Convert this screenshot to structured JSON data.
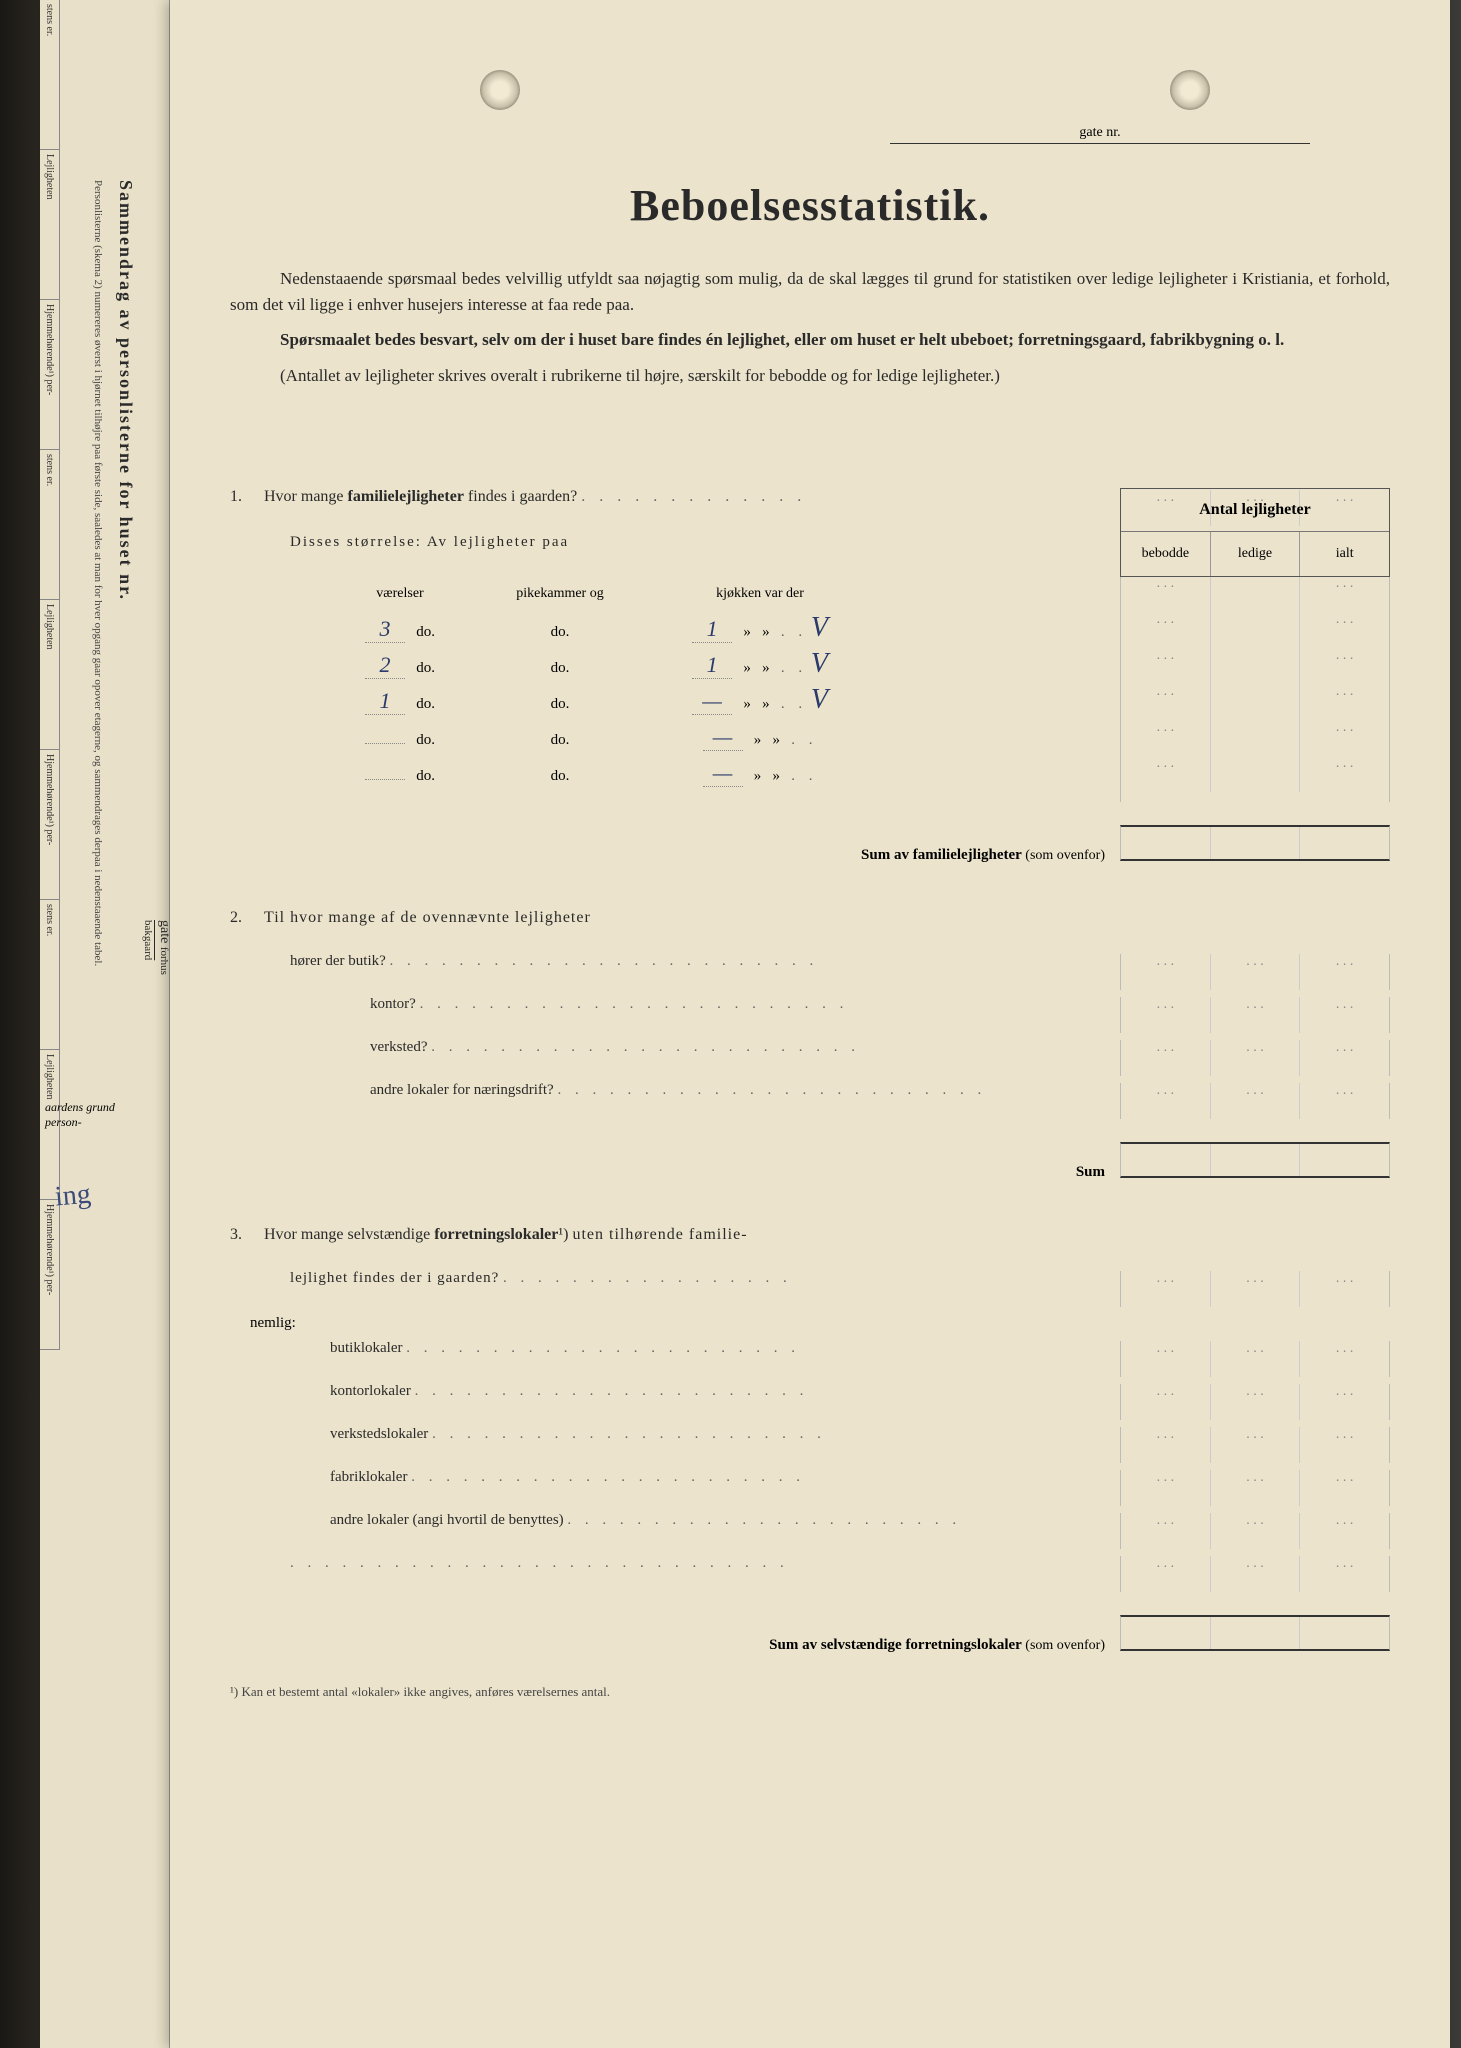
{
  "header": {
    "gate_label": "gate nr.",
    "title": "Beboelsesstatistik."
  },
  "intro": {
    "p1": "Nedenstaaende spørsmaal bedes velvillig utfyldt saa nøjagtig som mulig, da de skal lægges til grund for statistiken over ledige lejligheter i Kristiania, et forhold, som det vil ligge i enhver husejers interesse at faa rede paa.",
    "p2": "Spørsmaalet bedes besvart, selv om der i huset bare findes én lejlighet, eller om huset er helt ubeboet; forretningsgaard, fabrikbygning o. l.",
    "p3": "(Antallet av lejligheter skrives overalt i rubrikerne til højre, særskilt for bebodde og for ledige lejligheter.)"
  },
  "table_header": {
    "main": "Antal lejligheter",
    "col1": "bebodde",
    "col2": "ledige",
    "col3": "ialt"
  },
  "q1": {
    "num": "1.",
    "text": "Hvor mange familielejligheter findes i gaarden?",
    "sub": "Disses størrelse:  Av lejligheter paa",
    "room_header": {
      "c1": "værelser",
      "c2": "pikekammer og",
      "c3": "kjøkken var der"
    },
    "rows": [
      {
        "v": "3",
        "p": "do.",
        "k": "do.",
        "kj": "1",
        "mark": "V"
      },
      {
        "v": "2",
        "p": "do.",
        "k": "do.",
        "kj": "1",
        "mark": "V"
      },
      {
        "v": "1",
        "p": "do.",
        "k": "do.",
        "kj": "—",
        "mark": "V"
      },
      {
        "v": "",
        "p": "do.",
        "k": "do.",
        "kj": "—",
        "mark": ""
      },
      {
        "v": "",
        "p": "do.",
        "k": "do.",
        "kj": "—",
        "mark": ""
      }
    ],
    "sum": "Sum av familielejligheter",
    "sum_paren": "(som ovenfor)"
  },
  "q2": {
    "num": "2.",
    "text": "Til hvor mange af de ovennævnte lejligheter",
    "rows": [
      "hører der butik?",
      "kontor?",
      "verksted?",
      "andre lokaler for næringsdrift?"
    ],
    "sum": "Sum"
  },
  "q3": {
    "num": "3.",
    "text_a": "Hvor mange selvstændige forretningslokaler¹) uten tilhørende familie-",
    "text_b": "lejlighet findes der i gaarden?",
    "nemlig": "nemlig:",
    "rows": [
      "butiklokaler",
      "kontorlokaler",
      "verkstedslokaler",
      "fabriklokaler",
      "andre lokaler (angi hvortil de benyttes)"
    ],
    "sum": "Sum av selvstændige forretningslokaler",
    "sum_paren": "(som ovenfor)"
  },
  "footnote": "¹) Kan et bestemt antal «lokaler» ikke angives, anføres værelsernes antal.",
  "left_strip": {
    "main_v": "Sammendrag av personlisterne for huset nr.",
    "small_v": "Personlisterne (skema 2) numereres øverst i hjørnet tilhøjre paa første side, saaledes at man for hver opgang gaar opover etagerne, og sammendrages derpaa i nedenstaaende tabel.",
    "gate": "gate",
    "forhus": "forhus",
    "bakgaard": "bakgaard",
    "cells": [
      "stens er.",
      "Lejligheten",
      "Hjemmehørende¹) per-",
      "stens er.",
      "Lejligheten",
      "Hjemmehørende¹) per-",
      "stens er.",
      "Lejligheten",
      "Hjemmehørende¹) per-"
    ],
    "grund": "aardens grund",
    "person": "person-",
    "hand": "ing"
  },
  "colors": {
    "paper": "#ebe3cb",
    "paper_left": "#e8e0c8",
    "text": "#2a2a2a",
    "border": "#555",
    "light_border": "#bbb",
    "handwriting": "#2a3a6a"
  }
}
